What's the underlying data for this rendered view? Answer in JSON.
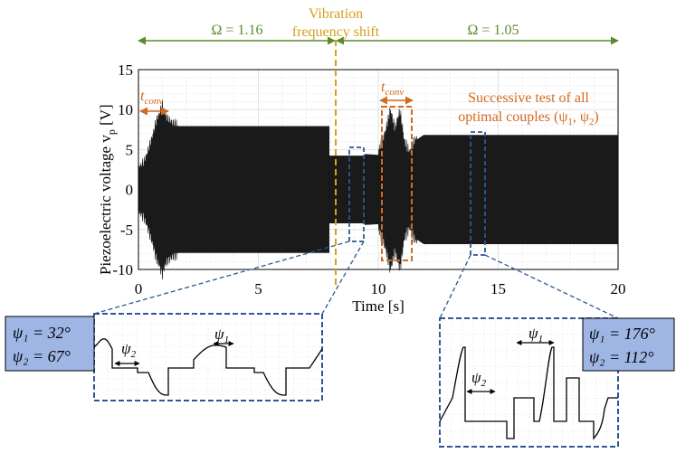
{
  "chart_data": {
    "type": "line",
    "xlabel": "Time [s]",
    "ylabel": "Piezoelectric voltage v",
    "ylabel_sub": "p",
    "ylabel_unit": " [V]",
    "xlim": [
      0,
      20
    ],
    "ylim": [
      -10,
      15
    ],
    "xticks": [
      "0",
      "5",
      "10",
      "15",
      "20"
    ],
    "yticks": [
      "15",
      "10",
      "5",
      "0",
      "-5",
      "-10"
    ],
    "grid": true,
    "series": [
      {
        "envelope": [
          {
            "t": 0.0,
            "v": 2.4
          },
          {
            "t": 0.25,
            "v": 3.2
          },
          {
            "t": 0.45,
            "v": 5.0
          },
          {
            "t": 0.6,
            "v": 6.5
          },
          {
            "t": 0.75,
            "v": 8.3
          },
          {
            "t": 0.9,
            "v": 9.3
          },
          {
            "t": 1.0,
            "v": 10.3
          },
          {
            "t": 1.1,
            "v": 9.0
          },
          {
            "t": 1.2,
            "v": 8.6
          },
          {
            "t": 1.4,
            "v": 8.0
          },
          {
            "t": 1.7,
            "v": 7.9
          },
          {
            "t": 7.95,
            "v": 7.9
          }
        ],
        "segment2": {
          "t0": 7.95,
          "t1": 9.45,
          "v": 4.2
        },
        "segment3": [
          {
            "t": 9.45,
            "v": 4.4
          },
          {
            "t": 10.0,
            "v": 4.3
          },
          {
            "t": 10.3,
            "v": 6.8
          },
          {
            "t": 10.5,
            "v": 9.6
          },
          {
            "t": 10.7,
            "v": 7.2
          },
          {
            "t": 10.9,
            "v": 9.5
          },
          {
            "t": 11.1,
            "v": 5.5
          },
          {
            "t": 11.3,
            "v": 4.3
          },
          {
            "t": 11.6,
            "v": 6.2
          },
          {
            "t": 11.9,
            "v": 6.8
          },
          {
            "t": 20.0,
            "v": 6.8
          }
        ]
      }
    ],
    "omega_left": "Ω = 1.16",
    "omega_right": "Ω = 1.05",
    "shift_time": 7.95,
    "shift_label_1": "Vibration",
    "shift_label_2": "frequency shift",
    "tconv_label": "t",
    "tconv_sub": "conv",
    "successive_line1": "Successive test of all",
    "successive_line2": "optimal couples (ψ",
    "successive_psi1_sub": "1",
    "successive_mid": ", ψ",
    "successive_psi2_sub": "2",
    "successive_end": ")",
    "inset_left": {
      "box1_line1": "ψ₁ = 32°",
      "box1_line2": "ψ₂ = 67°",
      "psi1": "ψ",
      "psi1_sub": "1",
      "psi2": "ψ",
      "psi2_sub": "2"
    },
    "inset_right": {
      "box2_line1": "ψ₁ = 176°",
      "box2_line2": "ψ₂ = 112°",
      "psi1": "ψ",
      "psi1_sub": "1",
      "psi2": "ψ",
      "psi2_sub": "2"
    },
    "colors": {
      "signal": "#1a1a1a",
      "omega_arrow": "#5a8a2a",
      "shift_line": "#d4a017",
      "tconv": "#d2691e",
      "zoom": "#2b5797",
      "param_box_fill": "#9fb6e4",
      "grid": "#dcdcdc"
    }
  }
}
